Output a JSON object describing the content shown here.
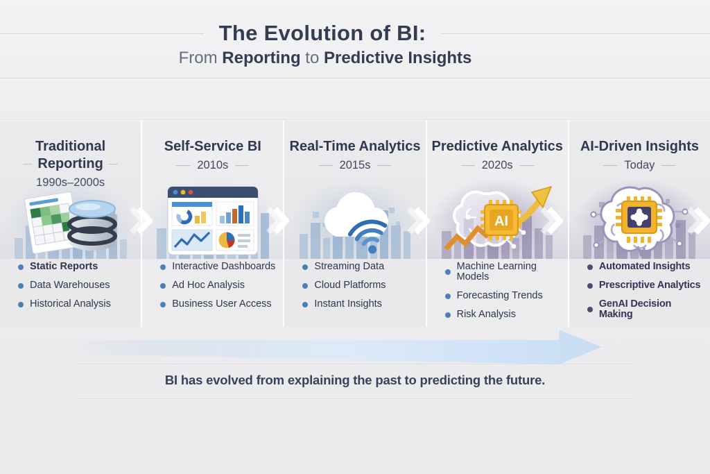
{
  "header": {
    "title": "The Evolution of BI:",
    "subtitle": {
      "prefix": "From",
      "highlight1": "Reporting",
      "connector": "to",
      "highlight2": "Predictive Insights"
    }
  },
  "columns": [
    {
      "title_line1": "Traditional",
      "title_line2": "Reporting",
      "period": "1990s–2000s",
      "icon": "spreadsheet-and-database",
      "items": [
        "Static Reports",
        "Data Warehouses",
        "Historical Analysis"
      ]
    },
    {
      "title": "Self-Service BI",
      "period": "2010s",
      "icon": "dashboard-browser",
      "items": [
        "Interactive Dashboards",
        "Ad Hoc Analysis",
        "Business User Access"
      ]
    },
    {
      "title": "Real-Time Analytics",
      "period": "2015s",
      "icon": "cloud-wifi",
      "items": [
        "Streaming Data",
        "Cloud Platforms",
        "Instant Insights"
      ]
    },
    {
      "title": "Predictive Analytics",
      "period": "2020s",
      "icon": "brain-ai-chip-growth-arrow",
      "items": [
        "Machine Learning Models",
        "Forecasting Trends",
        "Risk Analysis"
      ]
    },
    {
      "title": "AI-Driven Insights",
      "period": "Today",
      "icon": "brain-with-chip",
      "items": [
        "Automated Insights",
        "Prescriptive Analytics",
        "GenAI Decision Making"
      ]
    }
  ],
  "footer": {
    "caption": "BI has evolved from explaining the past to predicting the future."
  },
  "colors": {
    "title_navy": "#333c52",
    "bullet_blue": "#4b80b4",
    "bullet_purple": "#4c4b74",
    "gold": "#f0b429",
    "arrow_blue": "#c8ddf3"
  }
}
